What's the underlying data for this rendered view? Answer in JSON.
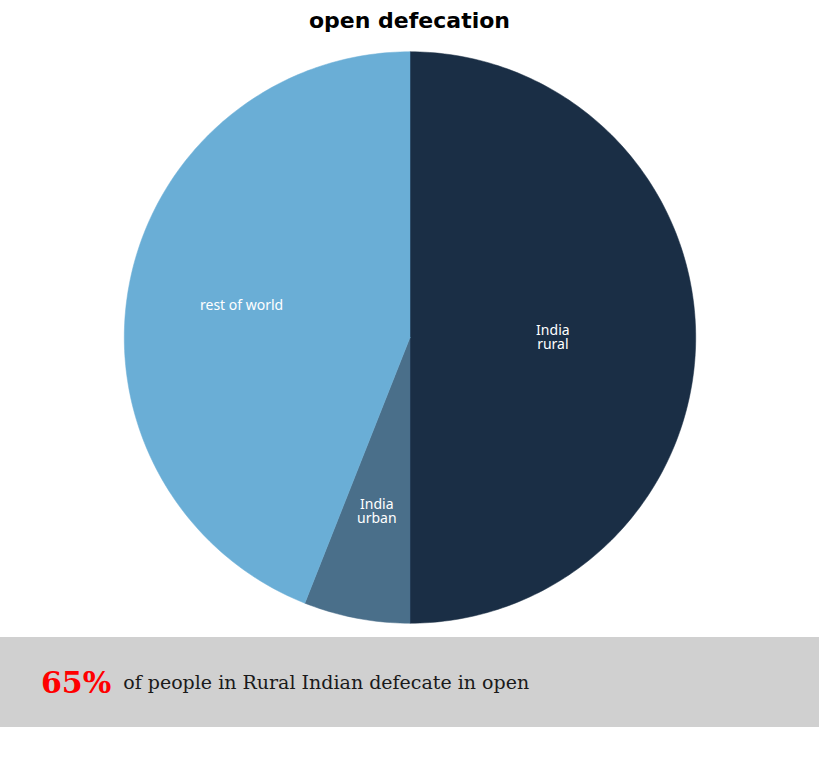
{
  "chart_data": {
    "type": "pie",
    "title": "open defecation",
    "categories": [
      "India\nrural",
      "India\nurban",
      "rest of world"
    ],
    "values": [
      50,
      6,
      44
    ],
    "colors": [
      "#1a2e45",
      "#4a6f8a",
      "#6aaed6"
    ],
    "annotations": [
      {
        "text": "65%",
        "color": "#ff0000"
      },
      {
        "text": "of people in Rural Indian defecate in open",
        "color": "#1a1a1a"
      }
    ]
  }
}
